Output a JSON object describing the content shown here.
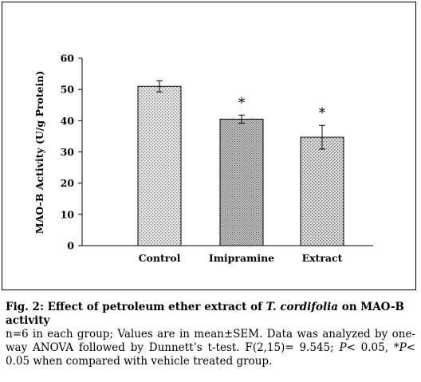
{
  "chart_data": {
    "type": "bar",
    "categories": [
      "Control",
      "Imipramine",
      "Extract"
    ],
    "values": [
      51,
      40.5,
      34.7
    ],
    "errors": [
      1.8,
      1.3,
      3.8
    ],
    "significance": [
      "",
      "*",
      "*"
    ],
    "ylabel": "MAO-B Activity (U/g Protein)",
    "ylim": [
      0,
      60
    ],
    "yticks": [
      "0",
      "10",
      "20",
      "30",
      "40",
      "50",
      "60"
    ],
    "grid": false,
    "legend": "none"
  },
  "caption": {
    "fig_label": "Fig. 2: Effect of petroleum ether extract of ",
    "species": "T. cordifolia",
    "fig_tail": " on MAO-B activity",
    "note_line": "n=6 in each group; Values are in mean±SEM. Data was analyzed by one-way ANOVA followed by Dunnett’s t-test. F(2,15)= 9.545;",
    "p_symbol_1": "P",
    "p_text_1": "< 0.05, *",
    "p_symbol_2": "P",
    "p_text_2": "< 0.05 when compared with vehicle treated group."
  },
  "colors": {
    "bar_fill": "#d9d9d9",
    "bar_stroke": "#000000"
  }
}
